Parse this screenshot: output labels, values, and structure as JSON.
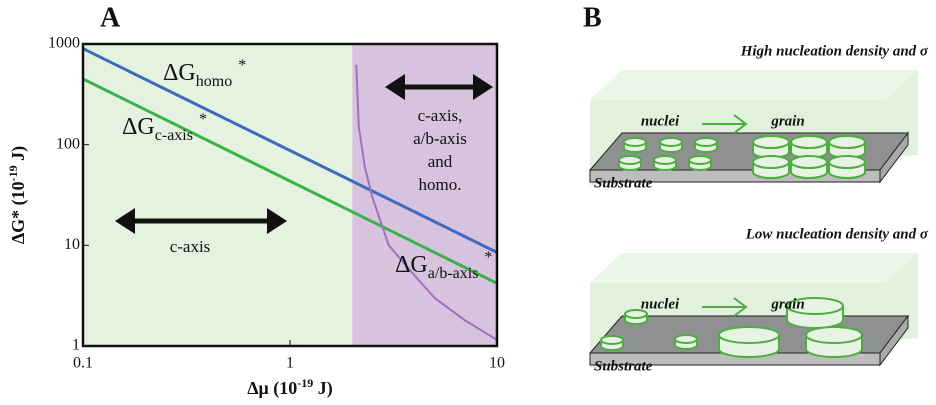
{
  "panel_a": {
    "label": "A"
  },
  "chart_data": {
    "type": "line",
    "x_label": "Δμ (10",
    "x_label_sup": "-19",
    "x_label_end": " J)",
    "y_label": "ΔG* (10",
    "y_label_sup": "-19",
    "y_label_end": " J)",
    "xlim": [
      0.1,
      10
    ],
    "ylim": [
      1,
      1000
    ],
    "log_x": true,
    "log_y": true,
    "xticks": [
      0.1,
      1,
      10
    ],
    "yticks": [
      1,
      10,
      100,
      1000
    ],
    "regions": [
      {
        "xlim": [
          0.1,
          2
        ],
        "color": "#e5f2df"
      },
      {
        "xlim": [
          2,
          10
        ],
        "color": "#d8c3de"
      }
    ],
    "series": [
      {
        "name": "ΔG",
        "name_sub": "homo",
        "name_sup": "*",
        "color": "#3b6cc0",
        "x": [
          0.1,
          10
        ],
        "values": [
          900,
          8.5
        ]
      },
      {
        "name": "ΔG",
        "name_sub": "c-axis",
        "name_sup": "*",
        "color": "#38b34a",
        "x": [
          0.1,
          10
        ],
        "values": [
          450,
          4.2
        ]
      },
      {
        "name": "ΔG",
        "name_sub": "a/b-axis",
        "name_sup": "*",
        "color": "#a070c0",
        "x": [
          2.09,
          2.15,
          2.3,
          2.5,
          3,
          4,
          5,
          7,
          10
        ],
        "values": [
          620,
          150,
          60,
          30,
          10,
          5,
          3,
          1.8,
          1.15
        ]
      }
    ],
    "annotations": [
      [
        "c-axis"
      ],
      [
        "c-axis,",
        "a/b-axis",
        "and",
        "homo."
      ]
    ]
  },
  "panel_b": {
    "label": "B",
    "top": {
      "title": "High nucleation density and σ",
      "nuclei": "nuclei",
      "grain": "grain",
      "substrate": "Substrate"
    },
    "bottom": {
      "title": "Low nucleation density and σ",
      "nuclei": "nuclei",
      "grain": "grain",
      "substrate": "Substrate"
    }
  }
}
